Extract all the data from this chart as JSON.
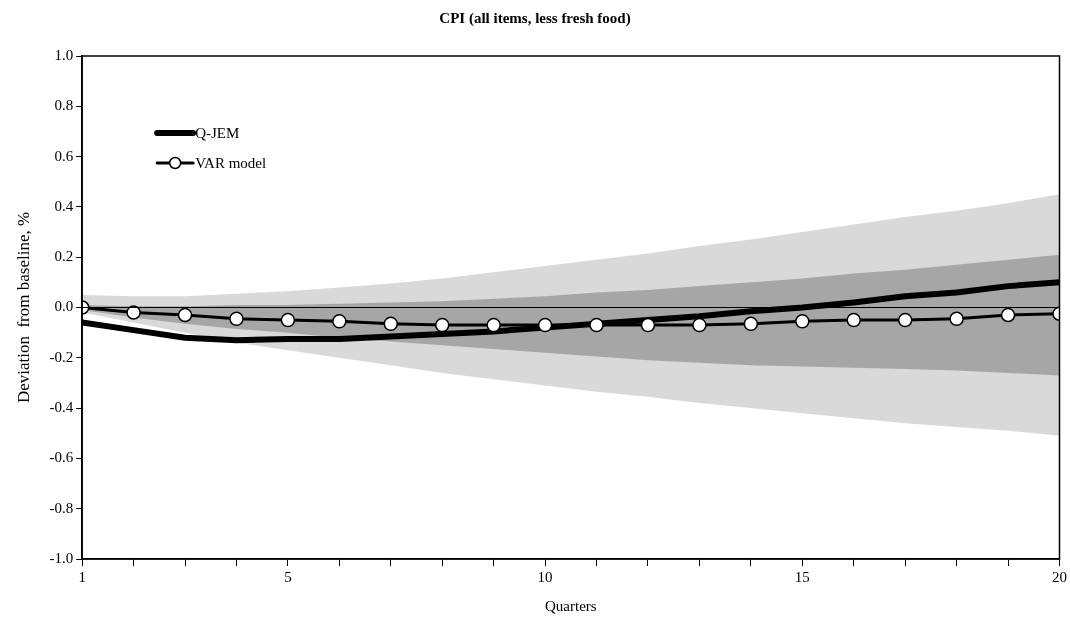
{
  "chart_data": {
    "type": "line",
    "title": "CPI (all items, less fresh food)",
    "xlabel": "Quarters",
    "ylabel": "Deviation  from baseline, %",
    "x": [
      1,
      2,
      3,
      4,
      5,
      6,
      7,
      8,
      9,
      10,
      11,
      12,
      13,
      14,
      15,
      16,
      17,
      18,
      19,
      20
    ],
    "xlim": [
      1,
      20
    ],
    "xticks": [
      1,
      {
        "value": 2,
        "label": null
      },
      {
        "value": 3,
        "label": null
      },
      {
        "value": 4,
        "label": null
      },
      5,
      {
        "value": 6,
        "label": null
      },
      {
        "value": 7,
        "label": null
      },
      {
        "value": 8,
        "label": null
      },
      {
        "value": 9,
        "label": null
      },
      10,
      {
        "value": 11,
        "label": null
      },
      {
        "value": 12,
        "label": null
      },
      {
        "value": 13,
        "label": null
      },
      {
        "value": 14,
        "label": null
      },
      15,
      {
        "value": 16,
        "label": null
      },
      {
        "value": 17,
        "label": null
      },
      {
        "value": 18,
        "label": null
      },
      {
        "value": 19,
        "label": null
      },
      20
    ],
    "ylim": [
      -1,
      1
    ],
    "yticks": [
      {
        "value": -1,
        "label": "-1.0"
      },
      {
        "value": -0.8,
        "label": "-0.8"
      },
      {
        "value": -0.6,
        "label": "-0.6"
      },
      {
        "value": -0.4,
        "label": "-0.4"
      },
      {
        "value": -0.2,
        "label": "-0.2"
      },
      {
        "value": 0,
        "label": "0.0"
      },
      {
        "value": 0.2,
        "label": "0.2"
      },
      {
        "value": 0.4,
        "label": "0.4"
      },
      {
        "value": 0.6,
        "label": "0.6"
      },
      {
        "value": 0.8,
        "label": "0.8"
      },
      {
        "value": 1,
        "label": "1.0"
      }
    ],
    "grid": false,
    "legend": "top left",
    "ref_lines": [
      {
        "axis": "y",
        "value": 0,
        "color": "#000000"
      }
    ],
    "series": [
      {
        "name": "Q-JEM",
        "color": "#000000",
        "marker": "none",
        "values": [
          -0.06,
          -0.09,
          -0.12,
          -0.13,
          -0.125,
          -0.125,
          -0.115,
          -0.105,
          -0.095,
          -0.08,
          -0.065,
          -0.05,
          -0.035,
          -0.015,
          0.0,
          0.02,
          0.045,
          0.06,
          0.085,
          0.1
        ],
        "lower": [
          -0.02,
          -0.06,
          -0.1,
          -0.14,
          -0.17,
          -0.2,
          -0.23,
          -0.26,
          -0.285,
          -0.31,
          -0.335,
          -0.355,
          -0.38,
          -0.4,
          -0.42,
          -0.44,
          -0.46,
          -0.475,
          -0.49,
          -0.51
        ],
        "upper": [
          0.05,
          0.045,
          0.045,
          0.055,
          0.065,
          0.08,
          0.095,
          0.115,
          0.14,
          0.165,
          0.19,
          0.215,
          0.245,
          0.27,
          0.3,
          0.33,
          0.36,
          0.385,
          0.415,
          0.45
        ]
      },
      {
        "name": "VAR model",
        "color": "#000000",
        "marker": "circle",
        "values": [
          0.0,
          -0.02,
          -0.03,
          -0.045,
          -0.05,
          -0.055,
          -0.065,
          -0.07,
          -0.07,
          -0.07,
          -0.07,
          -0.07,
          -0.07,
          -0.065,
          -0.055,
          -0.05,
          -0.05,
          -0.045,
          -0.03,
          -0.025
        ],
        "lower": [
          -0.01,
          -0.04,
          -0.065,
          -0.085,
          -0.1,
          -0.12,
          -0.135,
          -0.15,
          -0.165,
          -0.18,
          -0.195,
          -0.21,
          -0.22,
          -0.23,
          -0.235,
          -0.24,
          -0.245,
          -0.25,
          -0.26,
          -0.27
        ],
        "upper": [
          0.01,
          0.005,
          0.005,
          0.01,
          0.01,
          0.015,
          0.02,
          0.025,
          0.035,
          0.045,
          0.06,
          0.07,
          0.085,
          0.1,
          0.115,
          0.135,
          0.15,
          0.17,
          0.19,
          0.21
        ]
      }
    ]
  }
}
